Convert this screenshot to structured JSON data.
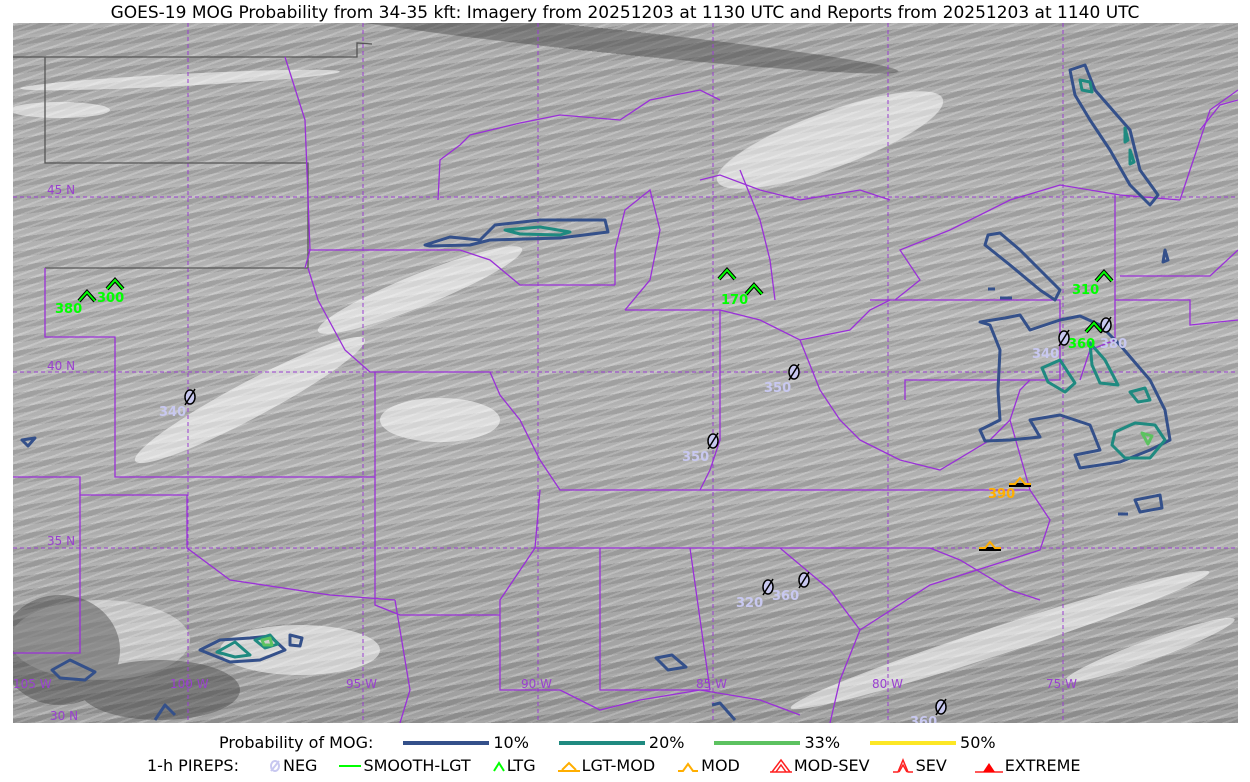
{
  "title": "GOES-19 MOG Probability from 34-35 kft: Imagery from 20251203 at 1130 UTC and Reports from 20251203 at 1140 UTC",
  "grid": {
    "lat_labels": [
      "45 N",
      "40 N",
      "35 N",
      "30 N"
    ],
    "lon_labels": [
      "105 W",
      "100 W",
      "95 W",
      "90 W",
      "85 W",
      "80 W",
      "75 W"
    ]
  },
  "colors": {
    "p10": "#34508a",
    "p20": "#1f8a80",
    "p33": "#5cc260",
    "p50": "#fde725",
    "borders": "#9a30d8",
    "neg": "#c8c8f0",
    "ltg": "#00ff00",
    "lgt_mod": "#ffae00",
    "mod": "#ffae00",
    "mod_sev": "#ff2020",
    "sev": "#ff2020",
    "extreme": "#ff0000"
  },
  "reports": [
    {
      "type": "LTG",
      "label": "380"
    },
    {
      "type": "LTG",
      "label": "300"
    },
    {
      "type": "LTG",
      "label": "170"
    },
    {
      "type": "LTG",
      "label": ""
    },
    {
      "type": "LTG",
      "label": "310"
    },
    {
      "type": "LTG",
      "label": "360"
    },
    {
      "type": "NEG",
      "label": "340"
    },
    {
      "type": "NEG",
      "label": "380"
    },
    {
      "type": "NEG",
      "label": "340"
    },
    {
      "type": "NEG",
      "label": "350"
    },
    {
      "type": "NEG",
      "label": "350"
    },
    {
      "type": "NEG",
      "label": "320"
    },
    {
      "type": "NEG",
      "label": "360"
    },
    {
      "type": "NEG",
      "label": "360"
    },
    {
      "type": "LGT-MOD",
      "label": "390"
    },
    {
      "type": "LGT-MOD",
      "label": ""
    }
  ],
  "legend": {
    "prob_title": "Probability of MOG:",
    "prob_items": [
      {
        "label": "10%",
        "color": "#34508a"
      },
      {
        "label": "20%",
        "color": "#1f8a80"
      },
      {
        "label": "33%",
        "color": "#5cc260"
      },
      {
        "label": "50%",
        "color": "#fde725"
      }
    ],
    "pirep_title": "1-h PIREPS:",
    "pirep_items": [
      {
        "label": "NEG",
        "icon": "neg-icon"
      },
      {
        "label": "SMOOTH-LGT",
        "icon": "smooth-lgt-icon"
      },
      {
        "label": "LTG",
        "icon": "ltg-icon"
      },
      {
        "label": "LGT-MOD",
        "icon": "lgt-mod-icon"
      },
      {
        "label": "MOD",
        "icon": "mod-icon"
      },
      {
        "label": "MOD-SEV",
        "icon": "mod-sev-icon"
      },
      {
        "label": "SEV",
        "icon": "sev-icon"
      },
      {
        "label": "EXTREME",
        "icon": "extreme-icon"
      }
    ]
  }
}
